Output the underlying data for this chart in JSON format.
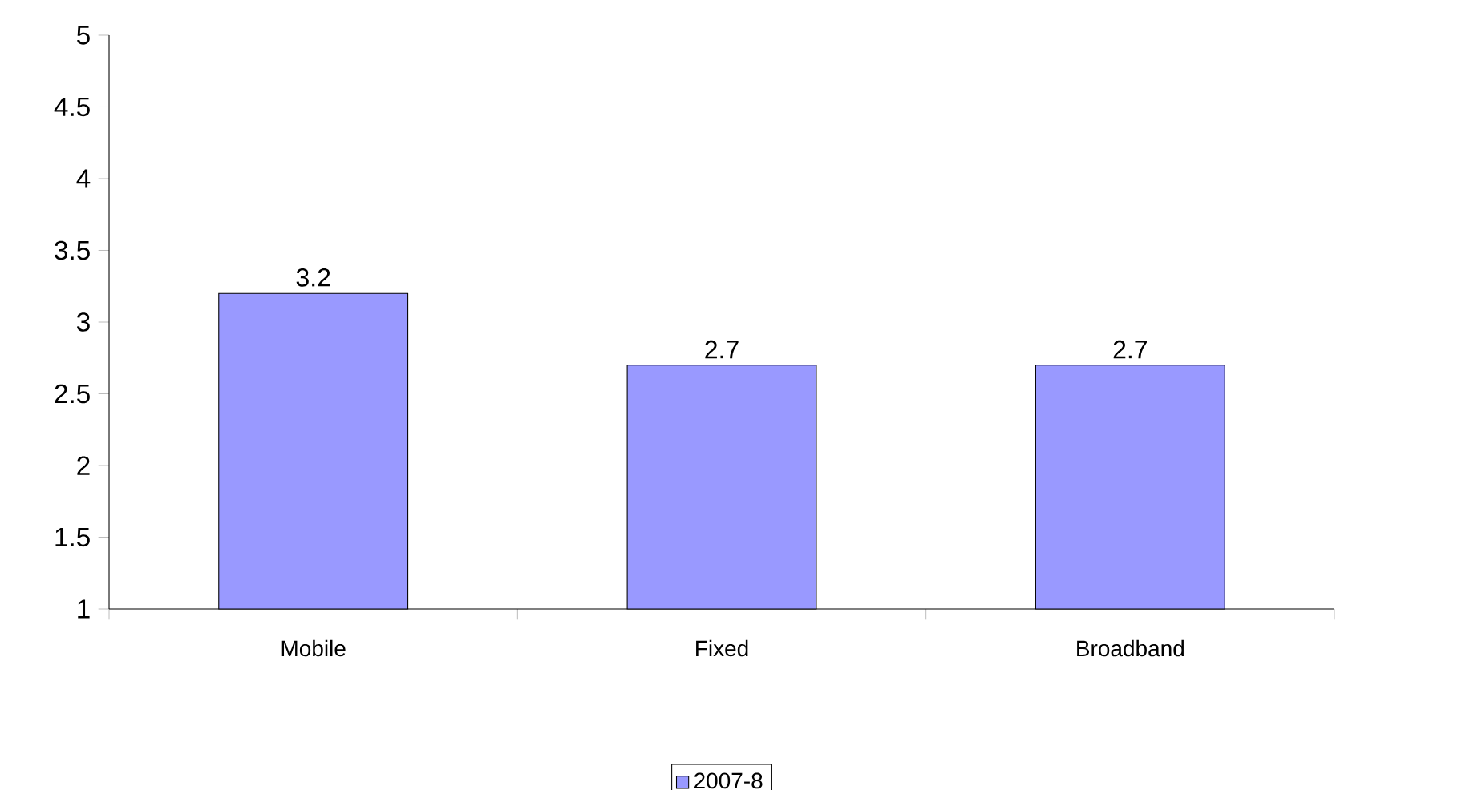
{
  "chart_data": {
    "type": "bar",
    "categories": [
      "Mobile",
      "Fixed",
      "Broadband"
    ],
    "series": [
      {
        "name": "2007-8",
        "color": "#9999ff",
        "values": [
          3.2,
          2.7,
          2.7
        ]
      }
    ],
    "ylim": [
      1,
      5
    ],
    "yticks": [
      1,
      1.5,
      2,
      2.5,
      3,
      3.5,
      4,
      4.5,
      5
    ],
    "data_labels": true,
    "legend": "bottom"
  }
}
